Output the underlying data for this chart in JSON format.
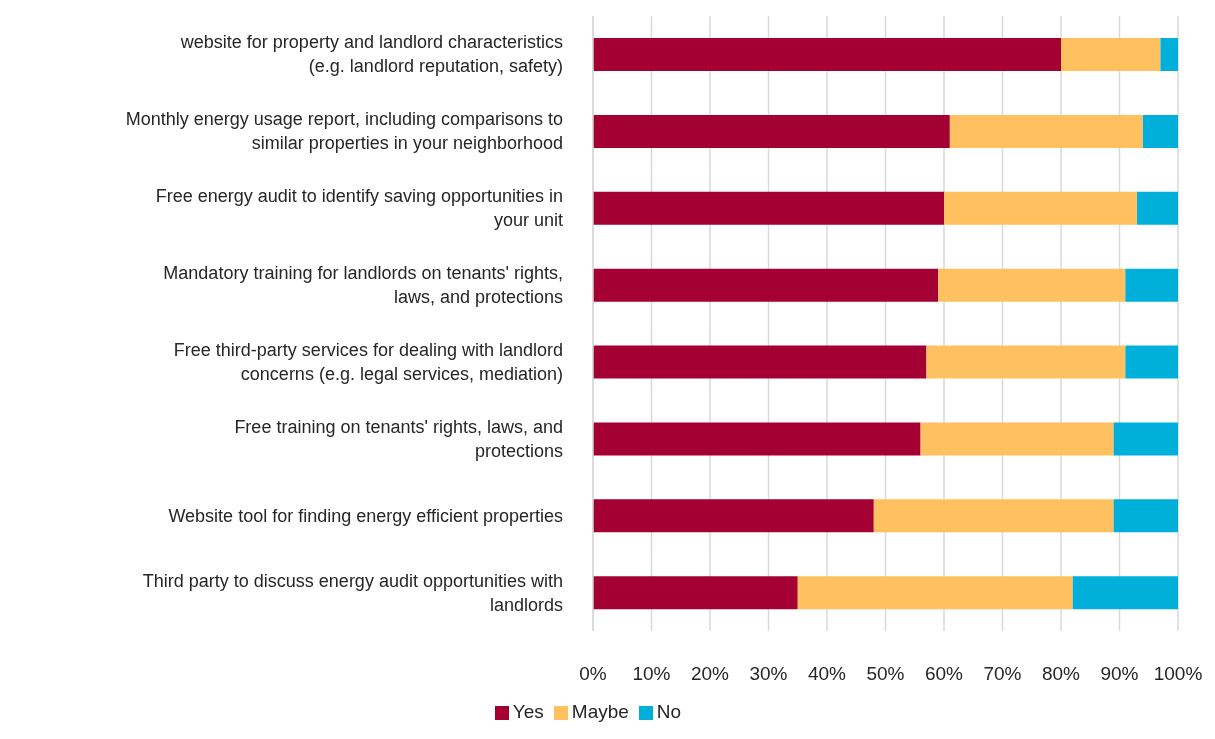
{
  "chart_data": {
    "type": "bar",
    "orientation": "horizontal",
    "stacked": true,
    "categories": [
      "website for property and landlord characteristics (e.g. landlord reputation, safety)",
      "Monthly energy usage report, including comparisons to similar properties in your neighborhood",
      "Free energy audit to identify saving opportunities in your unit",
      "Mandatory training for landlords on tenants' rights, laws, and protections",
      "Free third-party services for dealing with landlord concerns (e.g. legal services, mediation)",
      "Free training on tenants' rights, laws, and protections",
      "Website tool for finding energy efficient properties",
      "Third party to discuss energy audit opportunities with landlords"
    ],
    "series": [
      {
        "name": "Yes",
        "color": "#a50034",
        "values": [
          80,
          61,
          60,
          59,
          57,
          56,
          48,
          35
        ]
      },
      {
        "name": "Maybe",
        "color": "#ffc060",
        "values": [
          17,
          33,
          33,
          32,
          34,
          33,
          41,
          47
        ]
      },
      {
        "name": "No",
        "color": "#00b0db",
        "values": [
          3,
          6,
          7,
          9,
          9,
          11,
          11,
          18
        ]
      }
    ],
    "xlim": [
      0,
      100
    ],
    "xticks": [
      {
        "value": 0,
        "label": "0%"
      },
      {
        "value": 10,
        "label": "10%"
      },
      {
        "value": 20,
        "label": "20%"
      },
      {
        "value": 30,
        "label": "30%"
      },
      {
        "value": 40,
        "label": "40%"
      },
      {
        "value": 50,
        "label": "50%"
      },
      {
        "value": 60,
        "label": "60%"
      },
      {
        "value": 70,
        "label": "70%"
      },
      {
        "value": 80,
        "label": "80%"
      },
      {
        "value": 90,
        "label": "90%"
      },
      {
        "value": 100,
        "label": "100%"
      }
    ],
    "grid": "x",
    "legend": "bottom"
  }
}
